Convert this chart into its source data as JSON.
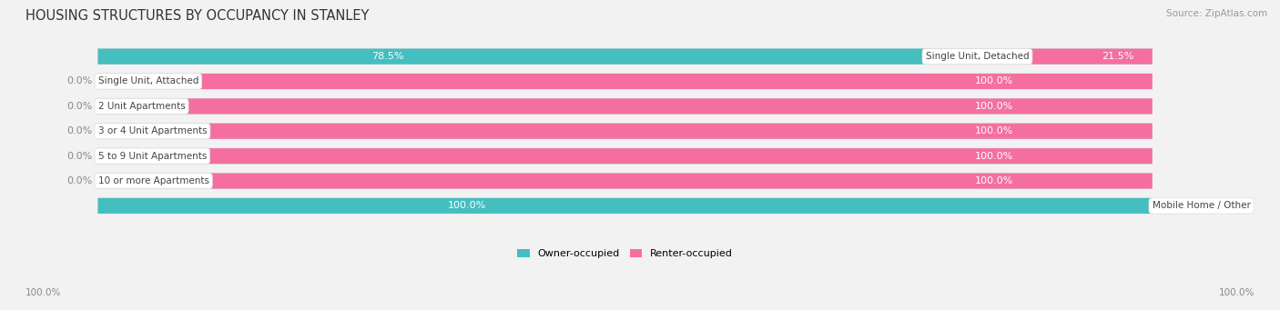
{
  "title": "HOUSING STRUCTURES BY OCCUPANCY IN STANLEY",
  "source": "Source: ZipAtlas.com",
  "categories": [
    "Single Unit, Detached",
    "Single Unit, Attached",
    "2 Unit Apartments",
    "3 or 4 Unit Apartments",
    "5 to 9 Unit Apartments",
    "10 or more Apartments",
    "Mobile Home / Other"
  ],
  "owner_pct": [
    78.5,
    0.0,
    0.0,
    0.0,
    0.0,
    0.0,
    100.0
  ],
  "renter_pct": [
    21.5,
    100.0,
    100.0,
    100.0,
    100.0,
    100.0,
    0.0
  ],
  "owner_color": "#45bec0",
  "renter_color": "#f46fa0",
  "renter_color_light": "#f9b8d0",
  "bg_color": "#f2f2f2",
  "bar_bg_color": "#e2e2e2",
  "title_fontsize": 10.5,
  "source_fontsize": 7.5,
  "label_fontsize": 8,
  "cat_fontsize": 7.5,
  "legend_fontsize": 8,
  "footer_fontsize": 7.5,
  "owner_label_inside_color": "#ffffff",
  "renter_label_inside_color": "#ffffff",
  "outside_label_color": "#888888"
}
